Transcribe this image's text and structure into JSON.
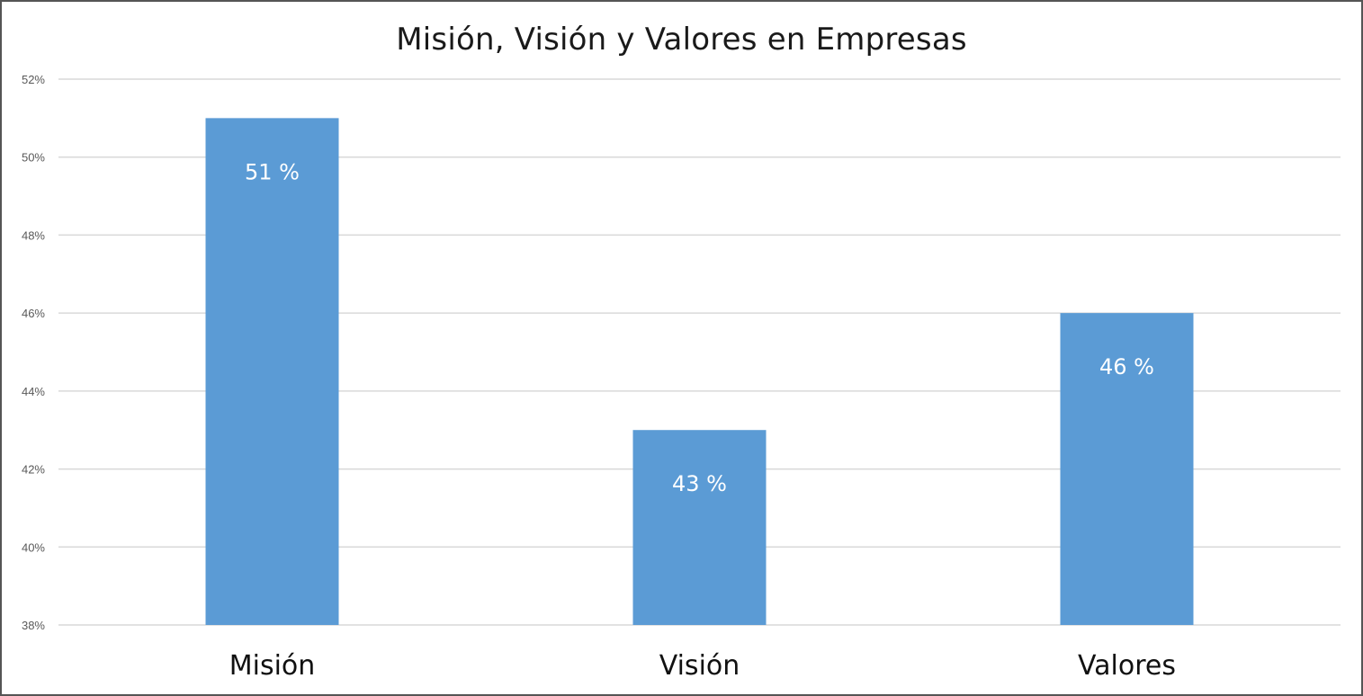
{
  "chart_data": {
    "type": "bar",
    "title": "Misión, Visión y Valores en Empresas",
    "xlabel": "",
    "ylabel": "",
    "categories": [
      "Misión",
      "Visión",
      "Valores"
    ],
    "values": [
      51,
      43,
      46
    ],
    "data_labels": [
      "51 %",
      "43 %",
      "46 %"
    ],
    "ylim": [
      38,
      52
    ],
    "y_ticks": [
      38,
      40,
      42,
      44,
      46,
      48,
      50,
      52
    ],
    "y_tick_labels": [
      "38%",
      "40%",
      "42%",
      "44%",
      "46%",
      "48%",
      "50%",
      "52%"
    ],
    "grid": true,
    "legend": "none",
    "bar_color": "#5b9bd5",
    "gridline_color": "#d9d9d9"
  }
}
